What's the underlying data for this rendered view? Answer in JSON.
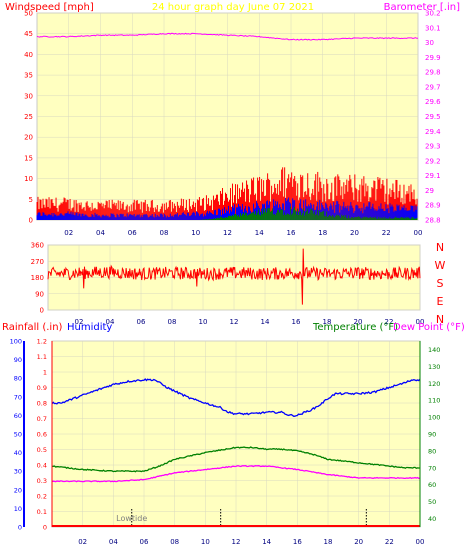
{
  "colors": {
    "background": "#ffffff",
    "plot_background": "#ffffc0",
    "border": "#c8c8c8",
    "grid": "#d8d8c0",
    "title": "#ffff00",
    "windspeed_axis": "#ff0000",
    "barometer_axis": "#ff00ff",
    "direction_axis": "#ff0000",
    "rainfall_axis": "#ff0000",
    "humidity_axis": "#0000ff",
    "temperature_axis": "#008000",
    "dewpoint_axis": "#ff00ff",
    "wind_gust": "#ff0000",
    "wind_avg": "#0000ff",
    "wind_low": "#008000",
    "barometer": "#ff00ff",
    "wind_dir": "#ff0000",
    "humidity": "#0000ff",
    "temperature": "#008000",
    "dewpoint": "#ff00ff",
    "rain": "#ff0000",
    "marker": "#000000",
    "x_ticks": "#000080"
  },
  "chart_data": [
    {
      "id": "wind_baro",
      "type": "line",
      "title": "24 hour graph day   June 07 2021",
      "ylabel_left": "Windspeed [mph]",
      "ylabel_right": "Barometer [.in]",
      "x_ticks": [
        "02",
        "04",
        "06",
        "08",
        "10",
        "12",
        "14",
        "16",
        "18",
        "20",
        "22",
        "00"
      ],
      "y_left_ticks": [
        "0",
        "5",
        "10",
        "15",
        "20",
        "25",
        "30",
        "35",
        "40",
        "45",
        "50"
      ],
      "ylim_left": [
        0,
        50
      ],
      "y_right_ticks": [
        "28.8",
        "28.9",
        "29",
        "29.1",
        "29.2",
        "29.3",
        "29.4",
        "29.5",
        "29.6",
        "29.7",
        "29.8",
        "29.9",
        "30",
        "30.1",
        "30.2"
      ],
      "ylim_right": [
        28.8,
        30.2
      ],
      "grid": true,
      "series": [
        {
          "key": "wind_gust",
          "axis": "left",
          "type": "bar",
          "x": [
            0,
            2,
            4,
            6,
            8,
            10,
            11,
            12,
            13,
            14,
            15,
            16,
            17,
            18,
            19,
            20,
            21,
            22,
            23,
            24
          ],
          "y": [
            4,
            4,
            3.5,
            3.5,
            3.5,
            4,
            4.5,
            6,
            7,
            8,
            9,
            10,
            9,
            8.5,
            8,
            8,
            8,
            7.5,
            7,
            6.5
          ]
        },
        {
          "key": "wind_avg",
          "axis": "left",
          "type": "bar",
          "x": [
            0,
            2,
            4,
            6,
            8,
            10,
            11,
            12,
            13,
            14,
            15,
            16,
            17,
            18,
            19,
            20,
            21,
            22,
            23,
            24
          ],
          "y": [
            1.5,
            1.5,
            1.2,
            1.2,
            1.2,
            1.5,
            1.8,
            2.5,
            3,
            3.5,
            4,
            4.2,
            3.8,
            3.5,
            3.3,
            3.2,
            3.2,
            3,
            2.8,
            2.5
          ]
        },
        {
          "key": "wind_low",
          "axis": "left",
          "type": "bar",
          "x": [
            0,
            10,
            11,
            12,
            13,
            14,
            15,
            16,
            17,
            18,
            19,
            20,
            24
          ],
          "y": [
            0,
            0,
            0.3,
            1,
            1.5,
            2.2,
            2.8,
            3,
            2.4,
            2,
            1.2,
            0.8,
            0.6
          ]
        },
        {
          "key": "barometer",
          "axis": "right",
          "type": "line",
          "x": [
            0,
            2,
            4,
            6,
            8,
            10,
            12,
            14,
            15,
            16,
            18,
            20,
            22,
            24
          ],
          "y": [
            30.04,
            30.04,
            30.05,
            30.05,
            30.06,
            30.06,
            30.05,
            30.04,
            30.03,
            30.02,
            30.02,
            30.03,
            30.03,
            30.03
          ]
        }
      ]
    },
    {
      "id": "wind_direction",
      "type": "line",
      "y_left_ticks": [
        "0",
        "90",
        "180",
        "270",
        "360"
      ],
      "ylim_left": [
        0,
        360
      ],
      "x_ticks": [
        "02",
        "04",
        "06",
        "08",
        "10",
        "12",
        "14",
        "16",
        "18",
        "20",
        "22",
        "00"
      ],
      "compass_labels": [
        "N",
        "W",
        "S",
        "E",
        "N"
      ],
      "grid": true,
      "series": [
        {
          "key": "wind_dir",
          "axis": "left",
          "x": [
            0,
            2,
            4,
            6,
            8,
            10,
            12,
            14,
            16,
            18,
            20,
            22,
            24
          ],
          "y": [
            200,
            205,
            210,
            200,
            205,
            200,
            205,
            200,
            205,
            200,
            205,
            200,
            205
          ]
        }
      ]
    },
    {
      "id": "temp_humidity",
      "type": "line",
      "ylabel_left": "Rainfall (.in)",
      "ylabel_humidity": "Humidity",
      "ylabel_right": "Temperature (°F)",
      "ylabel_dewpoint": "Dew Point (°F)",
      "annotation": "Lowtide",
      "x_ticks": [
        "02",
        "04",
        "06",
        "08",
        "10",
        "12",
        "14",
        "16",
        "18",
        "20",
        "22",
        "00"
      ],
      "y_humidity_ticks": [
        "0",
        "10",
        "20",
        "30",
        "40",
        "50",
        "60",
        "70",
        "80",
        "90",
        "100"
      ],
      "y_rain_ticks": [
        "0",
        "0.1",
        "0.2",
        "0.3",
        "0.4",
        "0.5",
        "0.6",
        "0.7",
        "0.8",
        "0.9",
        "1",
        "1.1",
        "1.2"
      ],
      "ylim_rain": [
        0,
        1.2
      ],
      "y_temp_ticks": [
        "40",
        "50",
        "60",
        "70",
        "80",
        "90",
        "100",
        "110",
        "120",
        "130",
        "140"
      ],
      "ylim_temp": [
        35,
        145
      ],
      "grid": true,
      "series": [
        {
          "key": "humidity",
          "axis": "rain",
          "x": [
            0,
            0.6,
            2,
            4,
            5,
            6,
            6.7,
            7.5,
            9,
            10,
            11,
            11.5,
            12,
            13,
            14,
            15,
            15.5,
            16,
            16.5,
            17,
            17.5,
            18,
            18.5,
            19,
            20,
            21,
            22,
            23,
            23.5,
            24
          ],
          "y": [
            0.8,
            0.8,
            0.85,
            0.92,
            0.94,
            0.95,
            0.95,
            0.9,
            0.83,
            0.8,
            0.77,
            0.74,
            0.73,
            0.73,
            0.74,
            0.74,
            0.72,
            0.72,
            0.74,
            0.76,
            0.79,
            0.83,
            0.86,
            0.86,
            0.86,
            0.87,
            0.9,
            0.93,
            0.95,
            0.95
          ]
        },
        {
          "key": "temperature",
          "axis": "temp",
          "x": [
            0,
            2,
            4,
            6,
            7,
            8,
            10,
            12,
            13,
            14,
            15,
            16,
            17,
            18,
            19,
            20,
            21,
            22,
            23,
            24
          ],
          "y": [
            71,
            69,
            68,
            68,
            71,
            75,
            79,
            82,
            82,
            81,
            81,
            80,
            78,
            75,
            74,
            73,
            72,
            71,
            70,
            70
          ]
        },
        {
          "key": "dewpoint",
          "axis": "temp",
          "x": [
            0,
            2,
            4,
            6,
            7,
            8,
            10,
            12,
            14,
            16,
            18,
            20,
            22,
            24
          ],
          "y": [
            62,
            62,
            62,
            63,
            65,
            67,
            69,
            71,
            71,
            69,
            66,
            64,
            64,
            64
          ]
        },
        {
          "key": "rain",
          "axis": "rain",
          "x": [
            0,
            24
          ],
          "y": [
            0,
            0
          ]
        }
      ],
      "markers_x": [
        5.2,
        11,
        20.5
      ]
    }
  ]
}
